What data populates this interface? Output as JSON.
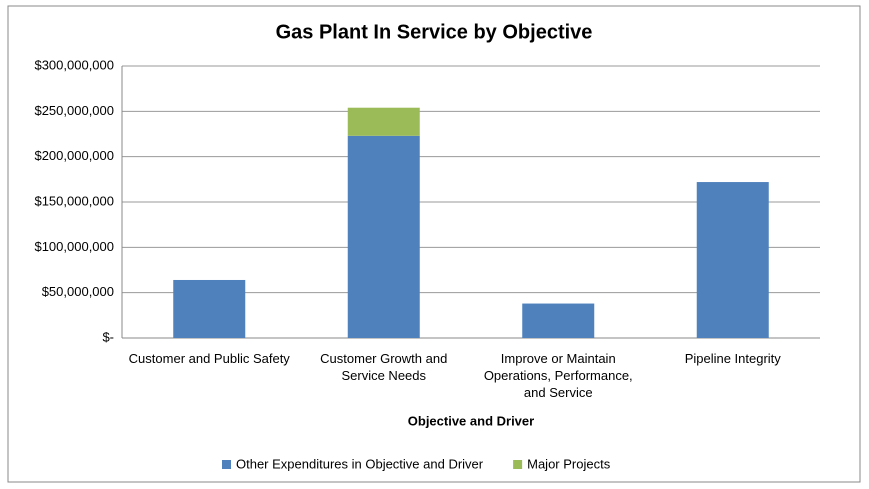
{
  "chart_data": {
    "type": "stacked_bar",
    "title": "Gas Plant In Service by Objective",
    "x_label": "Objective and Driver",
    "categories": [
      "Customer and Public Safety",
      "Customer Growth and Service Needs",
      "Improve or Maintain Operations, Performance, and Service",
      "Pipeline Integrity"
    ],
    "series": [
      {
        "name": "Other Expenditures in Objective and Driver",
        "color": "#4f81bd",
        "values": [
          64000000,
          223000000,
          38000000,
          172000000
        ]
      },
      {
        "name": "Major Projects",
        "color": "#9bbb59",
        "values": [
          null,
          31000000,
          null,
          null
        ]
      }
    ],
    "ylim": [
      0,
      300000000
    ],
    "yticks": [
      {
        "value": 0,
        "label": "$-"
      },
      {
        "value": 50000000,
        "label": "$50,000,000"
      },
      {
        "value": 100000000,
        "label": "$100,000,000"
      },
      {
        "value": 150000000,
        "label": "$150,000,000"
      },
      {
        "value": 200000000,
        "label": "$200,000,000"
      },
      {
        "value": 250000000,
        "label": "$250,000,000"
      },
      {
        "value": 300000000,
        "label": "$300,000,000"
      }
    ],
    "grid": true,
    "legend": "bottom"
  }
}
